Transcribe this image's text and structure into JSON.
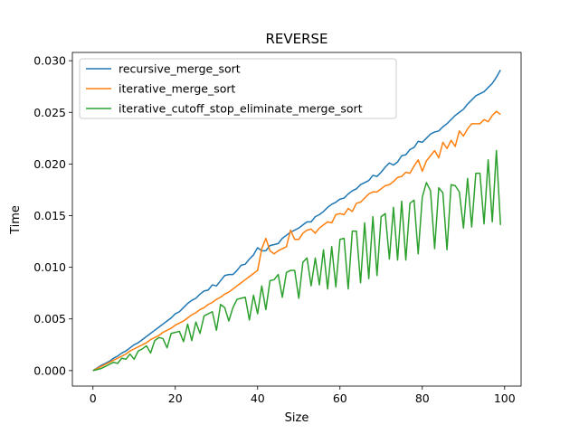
{
  "chart_data": {
    "type": "line",
    "title": "REVERSE",
    "xlabel": "Size",
    "ylabel": "Time",
    "xlim": [
      -5,
      104
    ],
    "ylim": [
      -0.0015,
      0.0308
    ],
    "xticks": [
      0,
      20,
      40,
      60,
      80,
      100
    ],
    "xtick_labels": [
      "0",
      "20",
      "40",
      "60",
      "80",
      "100"
    ],
    "yticks": [
      0,
      0.005,
      0.01,
      0.015,
      0.02,
      0.025,
      0.03
    ],
    "ytick_labels": [
      "0.000",
      "0.005",
      "0.010",
      "0.015",
      "0.020",
      "0.025",
      "0.030"
    ],
    "grid": false,
    "legend_position": "top-left",
    "series": [
      {
        "name": "recursive_merge_sort",
        "color": "#1f77b4",
        "x": [
          0,
          1,
          2,
          3,
          4,
          5,
          6,
          7,
          8,
          9,
          10,
          11,
          12,
          13,
          14,
          15,
          16,
          17,
          18,
          19,
          20,
          21,
          22,
          23,
          24,
          25,
          26,
          27,
          28,
          29,
          30,
          31,
          32,
          33,
          34,
          35,
          36,
          37,
          38,
          39,
          40,
          41,
          42,
          43,
          44,
          45,
          46,
          47,
          48,
          49,
          50,
          51,
          52,
          53,
          54,
          55,
          56,
          57,
          58,
          59,
          60,
          61,
          62,
          63,
          64,
          65,
          66,
          67,
          68,
          69,
          70,
          71,
          72,
          73,
          74,
          75,
          76,
          77,
          78,
          79,
          80,
          81,
          82,
          83,
          84,
          85,
          86,
          87,
          88,
          89,
          90,
          91,
          92,
          93,
          94,
          95,
          96,
          97,
          98,
          99
        ],
        "y": [
          0.0,
          0.00025,
          0.0005,
          0.0007,
          0.0009,
          0.0012,
          0.0014,
          0.0017,
          0.0019,
          0.0022,
          0.0025,
          0.0027,
          0.003,
          0.0033,
          0.0036,
          0.0039,
          0.0042,
          0.0045,
          0.0048,
          0.0051,
          0.0055,
          0.0057,
          0.0061,
          0.0065,
          0.0068,
          0.007,
          0.0074,
          0.0077,
          0.0078,
          0.0083,
          0.0082,
          0.0087,
          0.0092,
          0.0093,
          0.0093,
          0.0097,
          0.0102,
          0.0103,
          0.0108,
          0.0112,
          0.0119,
          0.0116,
          0.0116,
          0.0121,
          0.0122,
          0.0123,
          0.0128,
          0.0131,
          0.0134,
          0.0136,
          0.0138,
          0.0141,
          0.0144,
          0.0144,
          0.0149,
          0.0151,
          0.0154,
          0.0158,
          0.0161,
          0.0163,
          0.0166,
          0.0167,
          0.0171,
          0.0174,
          0.0176,
          0.018,
          0.0182,
          0.0184,
          0.0189,
          0.0188,
          0.0192,
          0.0197,
          0.0201,
          0.0199,
          0.0202,
          0.0208,
          0.0209,
          0.0214,
          0.0216,
          0.0222,
          0.0221,
          0.0225,
          0.0229,
          0.0231,
          0.0232,
          0.0236,
          0.0239,
          0.0243,
          0.0247,
          0.025,
          0.0253,
          0.0258,
          0.0262,
          0.0266,
          0.0268,
          0.027,
          0.0274,
          0.0278,
          0.0284,
          0.0291
        ]
      },
      {
        "name": "iterative_merge_sort",
        "color": "#ff7f0e",
        "x": [
          0,
          1,
          2,
          3,
          4,
          5,
          6,
          7,
          8,
          9,
          10,
          11,
          12,
          13,
          14,
          15,
          16,
          17,
          18,
          19,
          20,
          21,
          22,
          23,
          24,
          25,
          26,
          27,
          28,
          29,
          30,
          31,
          32,
          33,
          34,
          35,
          36,
          37,
          38,
          39,
          40,
          41,
          42,
          43,
          44,
          45,
          46,
          47,
          48,
          49,
          50,
          51,
          52,
          53,
          54,
          55,
          56,
          57,
          58,
          59,
          60,
          61,
          62,
          63,
          64,
          65,
          66,
          67,
          68,
          69,
          70,
          71,
          72,
          73,
          74,
          75,
          76,
          77,
          78,
          79,
          80,
          81,
          82,
          83,
          84,
          85,
          86,
          87,
          88,
          89,
          90,
          91,
          92,
          93,
          94,
          95,
          96,
          97,
          98,
          99
        ],
        "y": [
          0.0,
          0.0002,
          0.0004,
          0.0006,
          0.0008,
          0.001,
          0.0012,
          0.0014,
          0.0016,
          0.0019,
          0.0021,
          0.0023,
          0.0025,
          0.0027,
          0.003,
          0.0032,
          0.0034,
          0.0037,
          0.0039,
          0.0041,
          0.0044,
          0.0046,
          0.0048,
          0.0051,
          0.0054,
          0.0056,
          0.0059,
          0.0061,
          0.0064,
          0.0066,
          0.0069,
          0.0071,
          0.0074,
          0.0076,
          0.0079,
          0.0082,
          0.0085,
          0.0088,
          0.0091,
          0.0094,
          0.0097,
          0.0118,
          0.0128,
          0.0116,
          0.0113,
          0.0116,
          0.0118,
          0.012,
          0.0136,
          0.0127,
          0.0127,
          0.0133,
          0.0136,
          0.0137,
          0.0133,
          0.0138,
          0.0141,
          0.0144,
          0.0143,
          0.0151,
          0.0152,
          0.0151,
          0.0157,
          0.0154,
          0.0162,
          0.0163,
          0.0167,
          0.0171,
          0.0173,
          0.0173,
          0.0176,
          0.0179,
          0.018,
          0.0183,
          0.0187,
          0.0188,
          0.0192,
          0.0191,
          0.0198,
          0.0204,
          0.0193,
          0.0203,
          0.0208,
          0.0213,
          0.0206,
          0.0221,
          0.0215,
          0.0223,
          0.0217,
          0.0232,
          0.0227,
          0.0234,
          0.0239,
          0.0239,
          0.0239,
          0.0243,
          0.0241,
          0.0247,
          0.0251,
          0.0248
        ]
      },
      {
        "name": "iterative_cutoff_stop_eliminate_merge_sort",
        "color": "#2ca02c",
        "x": [
          0,
          1,
          2,
          3,
          4,
          5,
          6,
          7,
          8,
          9,
          10,
          11,
          12,
          13,
          14,
          15,
          16,
          17,
          18,
          19,
          20,
          21,
          22,
          23,
          24,
          25,
          26,
          27,
          28,
          29,
          30,
          31,
          32,
          33,
          34,
          35,
          36,
          37,
          38,
          39,
          40,
          41,
          42,
          43,
          44,
          45,
          46,
          47,
          48,
          49,
          50,
          51,
          52,
          53,
          54,
          55,
          56,
          57,
          58,
          59,
          60,
          61,
          62,
          63,
          64,
          65,
          66,
          67,
          68,
          69,
          70,
          71,
          72,
          73,
          74,
          75,
          76,
          77,
          78,
          79,
          80,
          81,
          82,
          83,
          84,
          85,
          86,
          87,
          88,
          89,
          90,
          91,
          92,
          93,
          94,
          95,
          96,
          97,
          98,
          99
        ],
        "y": [
          0.0,
          0.0001,
          0.0002,
          0.0004,
          0.0006,
          0.0008,
          0.0007,
          0.0012,
          0.0011,
          0.0016,
          0.0011,
          0.0019,
          0.0021,
          0.0024,
          0.0017,
          0.0029,
          0.0032,
          0.0031,
          0.0022,
          0.0036,
          0.0037,
          0.0038,
          0.0028,
          0.0045,
          0.0029,
          0.0047,
          0.0036,
          0.0053,
          0.0055,
          0.0057,
          0.0039,
          0.0064,
          0.0061,
          0.0048,
          0.0061,
          0.0069,
          0.007,
          0.0071,
          0.0049,
          0.0073,
          0.0055,
          0.0082,
          0.0059,
          0.0087,
          0.0088,
          0.0093,
          0.0071,
          0.0095,
          0.0097,
          0.0097,
          0.007,
          0.0105,
          0.0109,
          0.0082,
          0.0109,
          0.0083,
          0.0117,
          0.0079,
          0.012,
          0.0081,
          0.0127,
          0.0128,
          0.0079,
          0.0135,
          0.0135,
          0.0085,
          0.0143,
          0.0089,
          0.0149,
          0.0092,
          0.0149,
          0.0152,
          0.0108,
          0.0158,
          0.0107,
          0.0164,
          0.0107,
          0.0162,
          0.0165,
          0.0113,
          0.0168,
          0.0182,
          0.0174,
          0.0118,
          0.0177,
          0.0172,
          0.0117,
          0.018,
          0.0179,
          0.0173,
          0.0138,
          0.0186,
          0.0139,
          0.0191,
          0.0191,
          0.0142,
          0.0204,
          0.0144,
          0.0213,
          0.0141
        ]
      }
    ]
  }
}
